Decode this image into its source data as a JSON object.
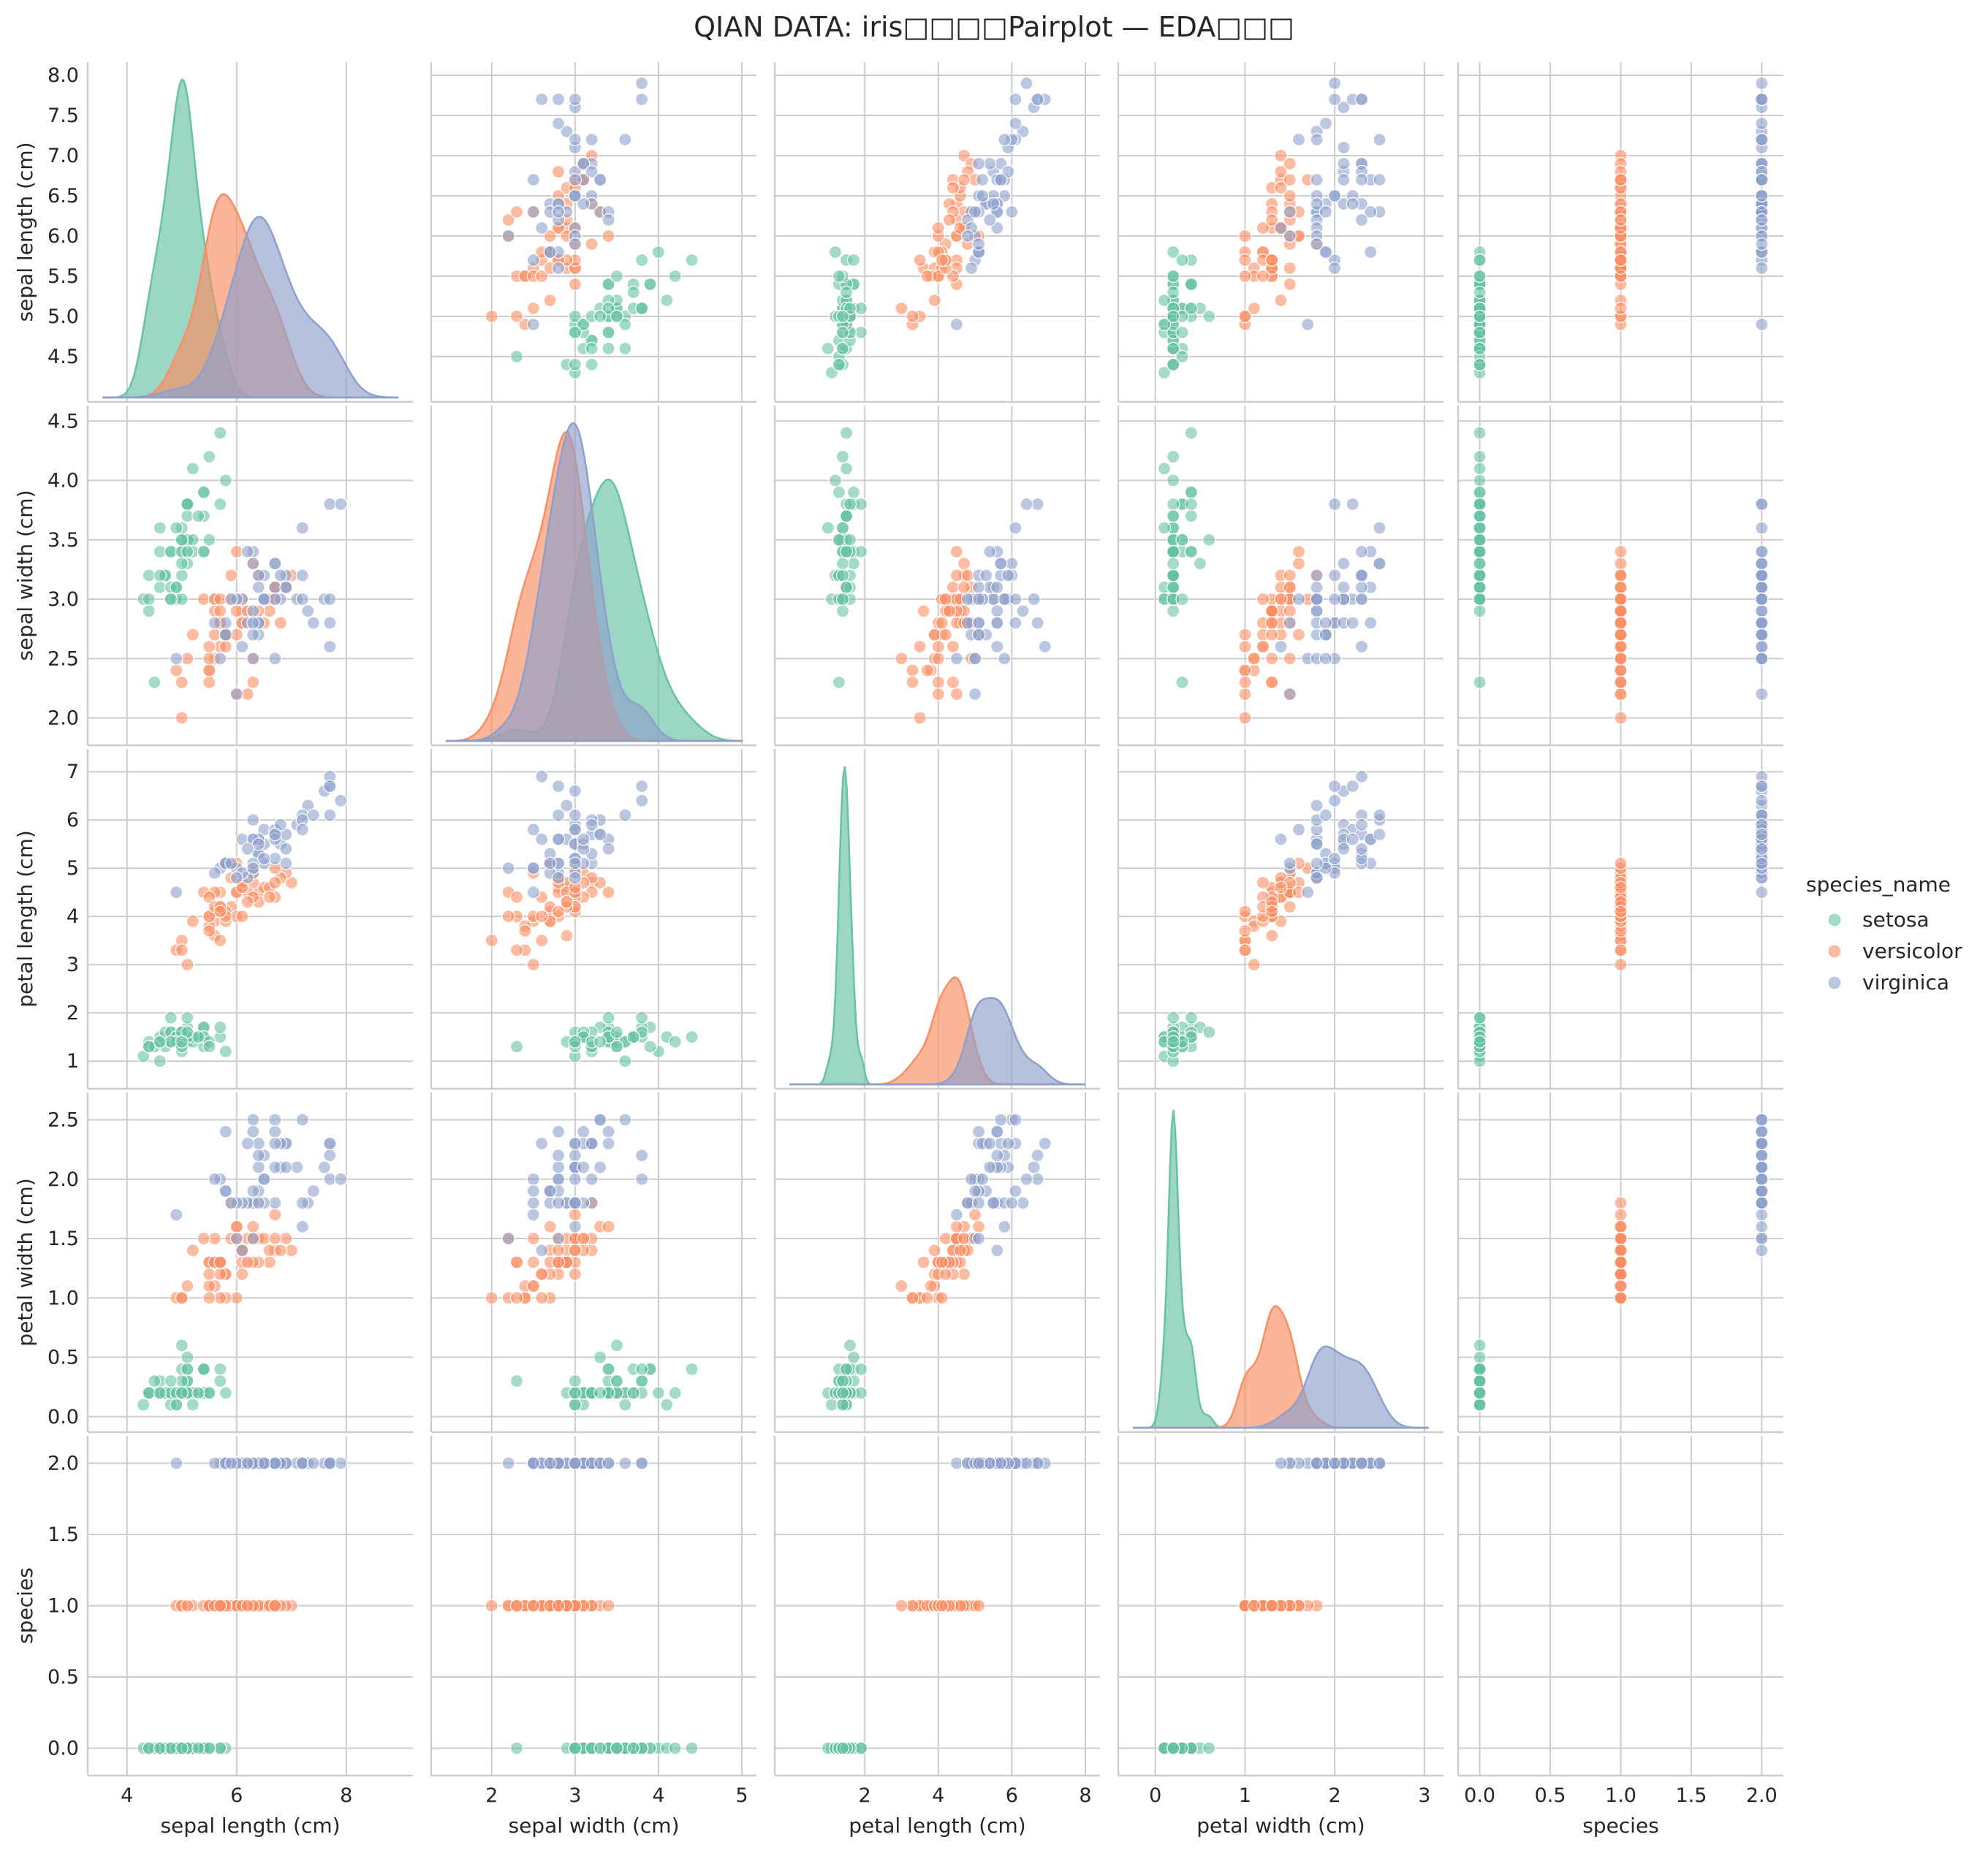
{
  "title": "QIAN DATA: iris□□□□Pairplot — EDA□□□",
  "chart_data": {
    "type": "scatter",
    "subtype": "pairplot",
    "variables": [
      "sepal length (cm)",
      "sepal width (cm)",
      "petal length (cm)",
      "petal width (cm)",
      "species"
    ],
    "axes": [
      {
        "label": "sepal length (cm)",
        "xlim": [
          3.55,
          8.95
        ],
        "xticks": [
          4,
          6,
          8
        ],
        "ylim": [
          4.1,
          8.0
        ],
        "yticks": [
          4.5,
          5.0,
          5.5,
          6.0,
          6.5,
          7.0,
          7.5,
          8.0
        ],
        "ytick_labels": [
          "4.5",
          "5.0",
          "5.5",
          "6.0",
          "6.5",
          "7.0",
          "7.5",
          "8.0"
        ]
      },
      {
        "label": "sepal width (cm)",
        "xlim": [
          1.45,
          5.0
        ],
        "xticks": [
          2,
          3,
          4,
          5
        ],
        "ylim": [
          1.88,
          4.52
        ],
        "yticks": [
          2.0,
          2.5,
          3.0,
          3.5,
          4.0,
          4.5
        ],
        "ytick_labels": [
          "2.0",
          "2.5",
          "3.0",
          "3.5",
          "4.0",
          "4.5"
        ]
      },
      {
        "label": "petal length (cm)",
        "xlim": [
          -0.05,
          8.0
        ],
        "xticks": [
          2,
          4,
          6,
          8
        ],
        "ylim": [
          0.7,
          7.2
        ],
        "yticks": [
          1,
          2,
          3,
          4,
          5,
          6,
          7
        ],
        "ytick_labels": [
          "1",
          "2",
          "3",
          "4",
          "5",
          "6",
          "7"
        ]
      },
      {
        "label": "petal width (cm)",
        "xlim": [
          -0.25,
          3.05
        ],
        "xticks": [
          0,
          1,
          2,
          3
        ],
        "ylim": [
          -0.02,
          2.62
        ],
        "yticks": [
          0.0,
          0.5,
          1.0,
          1.5,
          2.0,
          2.5
        ],
        "ytick_labels": [
          "0.0",
          "0.5",
          "1.0",
          "1.5",
          "2.0",
          "2.5"
        ]
      },
      {
        "label": "species",
        "xlim": [
          -0.05,
          2.05
        ],
        "xticks": [
          0,
          0.5,
          1,
          1.5,
          2
        ],
        "xtick_labels": [
          "0.0",
          "0.5",
          "1.0",
          "1.5",
          "2.0"
        ],
        "ylim": [
          -0.1,
          2.1
        ],
        "yticks": [
          0,
          0.5,
          1,
          1.5,
          2
        ],
        "ytick_labels": [
          "0.0",
          "0.5",
          "1.0",
          "1.5",
          "2.0"
        ]
      }
    ],
    "hue": {
      "title": "species_name",
      "legend_position": "right",
      "categories": [
        {
          "name": "setosa",
          "code": 0,
          "color": "#66c2a5"
        },
        {
          "name": "versicolor",
          "code": 1,
          "color": "#fc8d62"
        },
        {
          "name": "virginica",
          "code": 2,
          "color": "#8da0cb"
        }
      ]
    },
    "grid": true,
    "alpha": 0.6,
    "diagonal": "kde",
    "data": {
      "setosa": [
        [
          5.1,
          3.5,
          1.4,
          0.2
        ],
        [
          4.9,
          3.0,
          1.4,
          0.2
        ],
        [
          4.7,
          3.2,
          1.3,
          0.2
        ],
        [
          4.6,
          3.1,
          1.5,
          0.2
        ],
        [
          5.0,
          3.6,
          1.4,
          0.2
        ],
        [
          5.4,
          3.9,
          1.7,
          0.4
        ],
        [
          4.6,
          3.4,
          1.4,
          0.3
        ],
        [
          5.0,
          3.4,
          1.5,
          0.2
        ],
        [
          4.4,
          2.9,
          1.4,
          0.2
        ],
        [
          4.9,
          3.1,
          1.5,
          0.1
        ],
        [
          5.4,
          3.7,
          1.5,
          0.2
        ],
        [
          4.8,
          3.4,
          1.6,
          0.2
        ],
        [
          4.8,
          3.0,
          1.4,
          0.1
        ],
        [
          4.3,
          3.0,
          1.1,
          0.1
        ],
        [
          5.8,
          4.0,
          1.2,
          0.2
        ],
        [
          5.7,
          4.4,
          1.5,
          0.4
        ],
        [
          5.4,
          3.9,
          1.3,
          0.4
        ],
        [
          5.1,
          3.5,
          1.4,
          0.3
        ],
        [
          5.7,
          3.8,
          1.7,
          0.3
        ],
        [
          5.1,
          3.8,
          1.5,
          0.3
        ],
        [
          5.4,
          3.4,
          1.7,
          0.2
        ],
        [
          5.1,
          3.7,
          1.5,
          0.4
        ],
        [
          4.6,
          3.6,
          1.0,
          0.2
        ],
        [
          5.1,
          3.3,
          1.7,
          0.5
        ],
        [
          4.8,
          3.4,
          1.9,
          0.2
        ],
        [
          5.0,
          3.0,
          1.6,
          0.2
        ],
        [
          5.0,
          3.4,
          1.6,
          0.4
        ],
        [
          5.2,
          3.5,
          1.5,
          0.2
        ],
        [
          5.2,
          3.4,
          1.4,
          0.2
        ],
        [
          4.7,
          3.2,
          1.6,
          0.2
        ],
        [
          4.8,
          3.1,
          1.6,
          0.2
        ],
        [
          5.4,
          3.4,
          1.5,
          0.4
        ],
        [
          5.2,
          4.1,
          1.5,
          0.1
        ],
        [
          5.5,
          4.2,
          1.4,
          0.2
        ],
        [
          4.9,
          3.1,
          1.5,
          0.2
        ],
        [
          5.0,
          3.2,
          1.2,
          0.2
        ],
        [
          5.5,
          3.5,
          1.3,
          0.2
        ],
        [
          4.9,
          3.6,
          1.4,
          0.1
        ],
        [
          4.4,
          3.0,
          1.3,
          0.2
        ],
        [
          5.1,
          3.4,
          1.5,
          0.2
        ],
        [
          5.0,
          3.5,
          1.3,
          0.3
        ],
        [
          4.5,
          2.3,
          1.3,
          0.3
        ],
        [
          4.4,
          3.2,
          1.3,
          0.2
        ],
        [
          5.0,
          3.5,
          1.6,
          0.6
        ],
        [
          5.1,
          3.8,
          1.9,
          0.4
        ],
        [
          4.8,
          3.0,
          1.4,
          0.3
        ],
        [
          5.1,
          3.8,
          1.6,
          0.2
        ],
        [
          4.6,
          3.2,
          1.4,
          0.2
        ],
        [
          5.3,
          3.7,
          1.5,
          0.2
        ],
        [
          5.0,
          3.3,
          1.4,
          0.2
        ]
      ],
      "versicolor": [
        [
          7.0,
          3.2,
          4.7,
          1.4
        ],
        [
          6.4,
          3.2,
          4.5,
          1.5
        ],
        [
          6.9,
          3.1,
          4.9,
          1.5
        ],
        [
          5.5,
          2.3,
          4.0,
          1.3
        ],
        [
          6.5,
          2.8,
          4.6,
          1.5
        ],
        [
          5.7,
          2.8,
          4.5,
          1.3
        ],
        [
          6.3,
          3.3,
          4.7,
          1.6
        ],
        [
          4.9,
          2.4,
          3.3,
          1.0
        ],
        [
          6.6,
          2.9,
          4.6,
          1.3
        ],
        [
          5.2,
          2.7,
          3.9,
          1.4
        ],
        [
          5.0,
          2.0,
          3.5,
          1.0
        ],
        [
          5.9,
          3.0,
          4.2,
          1.5
        ],
        [
          6.0,
          2.2,
          4.0,
          1.0
        ],
        [
          6.1,
          2.9,
          4.7,
          1.4
        ],
        [
          5.6,
          2.9,
          3.6,
          1.3
        ],
        [
          6.7,
          3.1,
          4.4,
          1.4
        ],
        [
          5.6,
          3.0,
          4.5,
          1.5
        ],
        [
          5.8,
          2.7,
          4.1,
          1.0
        ],
        [
          6.2,
          2.2,
          4.5,
          1.5
        ],
        [
          5.6,
          2.5,
          3.9,
          1.1
        ],
        [
          5.9,
          3.2,
          4.8,
          1.8
        ],
        [
          6.1,
          2.8,
          4.0,
          1.3
        ],
        [
          6.3,
          2.5,
          4.9,
          1.5
        ],
        [
          6.1,
          2.8,
          4.7,
          1.2
        ],
        [
          6.4,
          2.9,
          4.3,
          1.3
        ],
        [
          6.6,
          3.0,
          4.4,
          1.4
        ],
        [
          6.8,
          2.8,
          4.8,
          1.4
        ],
        [
          6.7,
          3.0,
          5.0,
          1.7
        ],
        [
          6.0,
          2.9,
          4.5,
          1.5
        ],
        [
          5.7,
          2.6,
          3.5,
          1.0
        ],
        [
          5.5,
          2.4,
          3.8,
          1.1
        ],
        [
          5.5,
          2.4,
          3.7,
          1.0
        ],
        [
          5.8,
          2.7,
          3.9,
          1.2
        ],
        [
          6.0,
          2.7,
          5.1,
          1.6
        ],
        [
          5.4,
          3.0,
          4.5,
          1.5
        ],
        [
          6.0,
          3.4,
          4.5,
          1.6
        ],
        [
          6.7,
          3.1,
          4.7,
          1.5
        ],
        [
          6.3,
          2.3,
          4.4,
          1.3
        ],
        [
          5.6,
          3.0,
          4.1,
          1.3
        ],
        [
          5.5,
          2.5,
          4.0,
          1.3
        ],
        [
          5.5,
          2.6,
          4.4,
          1.2
        ],
        [
          6.1,
          3.0,
          4.6,
          1.4
        ],
        [
          5.8,
          2.6,
          4.0,
          1.2
        ],
        [
          5.0,
          2.3,
          3.3,
          1.0
        ],
        [
          5.6,
          2.7,
          4.2,
          1.3
        ],
        [
          5.7,
          3.0,
          4.2,
          1.2
        ],
        [
          5.7,
          2.9,
          4.2,
          1.3
        ],
        [
          6.2,
          2.9,
          4.3,
          1.3
        ],
        [
          5.1,
          2.5,
          3.0,
          1.1
        ],
        [
          5.7,
          2.8,
          4.1,
          1.3
        ]
      ],
      "virginica": [
        [
          6.3,
          3.3,
          6.0,
          2.5
        ],
        [
          5.8,
          2.7,
          5.1,
          1.9
        ],
        [
          7.1,
          3.0,
          5.9,
          2.1
        ],
        [
          6.3,
          2.9,
          5.6,
          1.8
        ],
        [
          6.5,
          3.0,
          5.8,
          2.2
        ],
        [
          7.6,
          3.0,
          6.6,
          2.1
        ],
        [
          4.9,
          2.5,
          4.5,
          1.7
        ],
        [
          7.3,
          2.9,
          6.3,
          1.8
        ],
        [
          6.7,
          2.5,
          5.8,
          1.8
        ],
        [
          7.2,
          3.6,
          6.1,
          2.5
        ],
        [
          6.5,
          3.2,
          5.1,
          2.0
        ],
        [
          6.4,
          2.7,
          5.3,
          1.9
        ],
        [
          6.8,
          3.0,
          5.5,
          2.1
        ],
        [
          5.7,
          2.5,
          5.0,
          2.0
        ],
        [
          5.8,
          2.8,
          5.1,
          2.4
        ],
        [
          6.4,
          3.2,
          5.3,
          2.3
        ],
        [
          6.5,
          3.0,
          5.5,
          1.8
        ],
        [
          7.7,
          3.8,
          6.7,
          2.2
        ],
        [
          7.7,
          2.6,
          6.9,
          2.3
        ],
        [
          6.0,
          2.2,
          5.0,
          1.5
        ],
        [
          6.9,
          3.2,
          5.7,
          2.3
        ],
        [
          5.6,
          2.8,
          4.9,
          2.0
        ],
        [
          7.7,
          2.8,
          6.7,
          2.0
        ],
        [
          6.3,
          2.7,
          4.9,
          1.8
        ],
        [
          6.7,
          3.3,
          5.7,
          2.1
        ],
        [
          7.2,
          3.2,
          6.0,
          1.8
        ],
        [
          6.2,
          2.8,
          4.8,
          1.8
        ],
        [
          6.1,
          3.0,
          4.9,
          1.8
        ],
        [
          6.4,
          2.8,
          5.6,
          2.1
        ],
        [
          7.2,
          3.0,
          5.8,
          1.6
        ],
        [
          7.4,
          2.8,
          6.1,
          1.9
        ],
        [
          7.9,
          3.8,
          6.4,
          2.0
        ],
        [
          6.4,
          2.8,
          5.6,
          2.2
        ],
        [
          6.3,
          2.8,
          5.1,
          1.5
        ],
        [
          6.1,
          2.6,
          5.6,
          1.4
        ],
        [
          7.7,
          3.0,
          6.1,
          2.3
        ],
        [
          6.3,
          3.4,
          5.6,
          2.4
        ],
        [
          6.4,
          3.1,
          5.5,
          1.8
        ],
        [
          6.0,
          3.0,
          4.8,
          1.8
        ],
        [
          6.9,
          3.1,
          5.4,
          2.1
        ],
        [
          6.7,
          3.1,
          5.6,
          2.4
        ],
        [
          6.9,
          3.1,
          5.1,
          2.3
        ],
        [
          5.8,
          2.7,
          5.1,
          1.9
        ],
        [
          6.8,
          3.2,
          5.9,
          2.3
        ],
        [
          6.7,
          3.3,
          5.7,
          2.5
        ],
        [
          6.7,
          3.0,
          5.2,
          2.3
        ],
        [
          6.3,
          2.5,
          5.0,
          1.9
        ],
        [
          6.5,
          3.0,
          5.2,
          2.0
        ],
        [
          6.2,
          3.4,
          5.4,
          2.3
        ],
        [
          5.9,
          3.0,
          5.1,
          1.8
        ]
      ]
    }
  }
}
